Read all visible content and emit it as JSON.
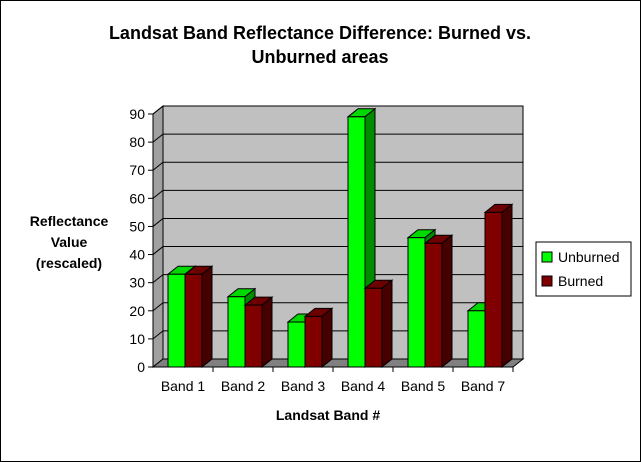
{
  "chart_data": {
    "type": "bar",
    "title_lines": [
      "Landsat Band Reflectance Difference: Burned vs.",
      "Unburned areas"
    ],
    "xlabel": "Landsat Band #",
    "ylabel_lines": [
      "Reflectance",
      "Value",
      "(rescaled)"
    ],
    "categories": [
      "Band 1",
      "Band 2",
      "Band 3",
      "Band 4",
      "Band 5",
      "Band 7"
    ],
    "series": [
      {
        "name": "Unburned",
        "color": "#00ff00",
        "values": [
          33,
          25,
          16,
          89,
          46,
          20
        ]
      },
      {
        "name": "Burned",
        "color": "#800000",
        "values": [
          33,
          22,
          18,
          28,
          44,
          55
        ]
      }
    ],
    "ylim": [
      0,
      90
    ],
    "yticks": [
      0,
      10,
      20,
      30,
      40,
      50,
      60,
      70,
      80,
      90
    ],
    "grid": true,
    "legend_position": "right",
    "three_d": true
  }
}
